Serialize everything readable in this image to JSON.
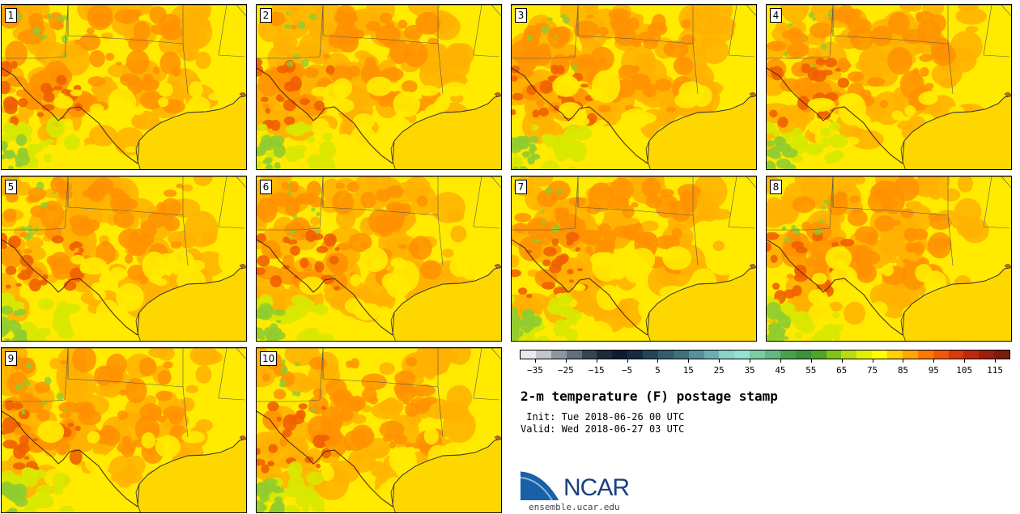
{
  "colors": {
    "ocean": "#ffd700",
    "land_base": "#ffea00",
    "land_hot": "#ffb000",
    "land_hotter": "#ff9000",
    "land_hottest": "#f06000",
    "land_cool": "#d8e800",
    "land_cooler": "#90cc30",
    "borders": "#555555"
  },
  "panels": [
    {
      "label": "1"
    },
    {
      "label": "2"
    },
    {
      "label": "3"
    },
    {
      "label": "4"
    },
    {
      "label": "5"
    },
    {
      "label": "6"
    },
    {
      "label": "7"
    },
    {
      "label": "8"
    },
    {
      "label": "9"
    },
    {
      "label": "10"
    }
  ],
  "colorbar": {
    "colors": [
      "#e8e8ee",
      "#c4c6cc",
      "#8e96a2",
      "#62707e",
      "#384450",
      "#1e2a3c",
      "#0e1c30",
      "#162a44",
      "#264458",
      "#345c6c",
      "#42707c",
      "#56909a",
      "#6eaeb0",
      "#8cd2c8",
      "#98e0d0",
      "#7ccca0",
      "#62b880",
      "#4aa04e",
      "#3c923a",
      "#50a428",
      "#80c418",
      "#b8dc10",
      "#e4f000",
      "#ffff00",
      "#ffd200",
      "#ffa600",
      "#ff7800",
      "#f05808",
      "#d83c0c",
      "#bc2c0c",
      "#9c200c",
      "#7a1c10"
    ],
    "tick_labels": [
      "−35",
      "−25",
      "−15",
      "−5",
      "5",
      "15",
      "25",
      "35",
      "45",
      "55",
      "65",
      "75",
      "85",
      "95",
      "105",
      "115"
    ]
  },
  "title": "2-m temperature (F) postage stamp",
  "init_line": " Init: Tue 2018-06-26 00 UTC",
  "valid_line": "Valid: Wed 2018-06-27 03 UTC",
  "logo": {
    "text": "NCAR",
    "url": "ensemble.ucar.edu"
  }
}
